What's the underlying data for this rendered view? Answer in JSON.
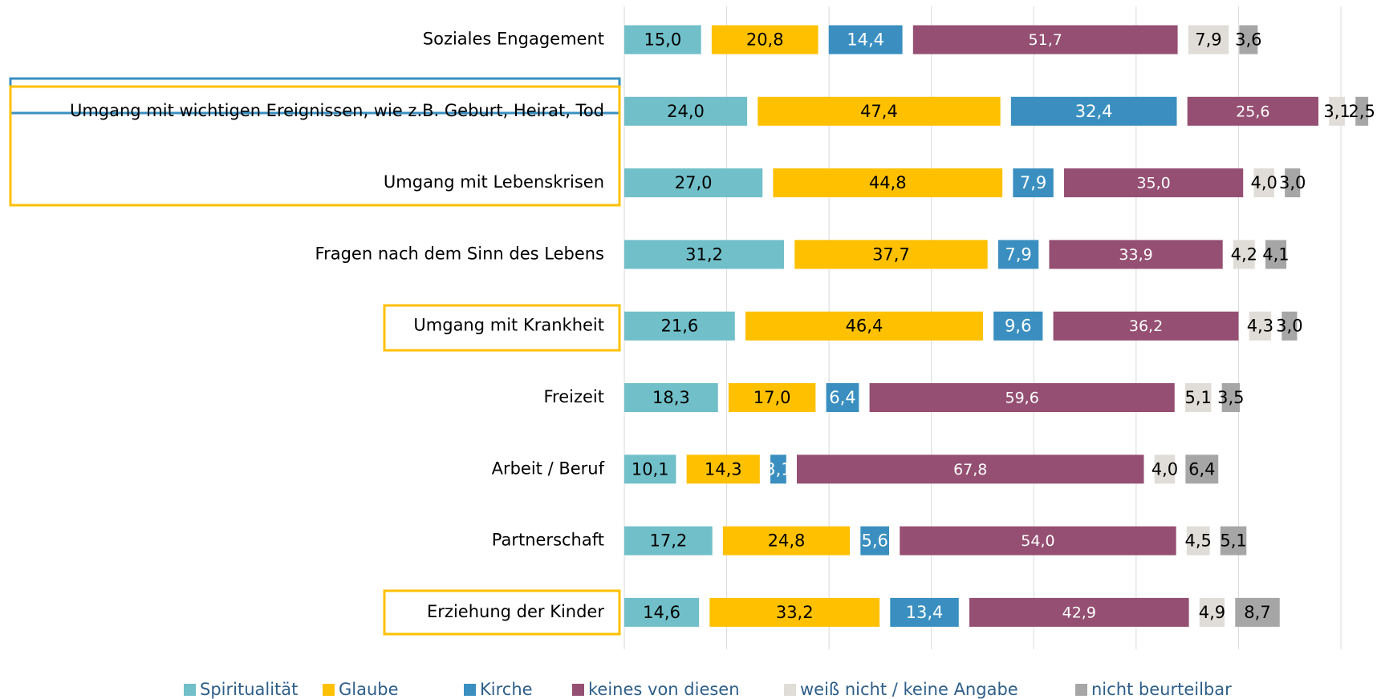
{
  "chart_data": {
    "type": "stacked-barh",
    "categories": [
      "Soziales Engagement",
      "Umgang mit wichtigen Ereignissen, wie z.B. Geburt, Heirat, Tod",
      "Umgang mit Lebenskrisen",
      "Fragen nach dem Sinn des Lebens",
      "Umgang mit Krankheit",
      "Freizeit",
      "Arbeit / Beruf",
      "Partnerschaft",
      "Erziehung der Kinder"
    ],
    "series": [
      {
        "name": "Spiritualität",
        "color": "#70bfc9",
        "label_color": "#000000",
        "values": [
          15.0,
          24.0,
          27.0,
          31.2,
          21.6,
          18.3,
          10.1,
          17.2,
          14.6
        ],
        "value_labels": [
          "15,0",
          "24,0",
          "27,0",
          "31,2",
          "21,6",
          "18,3",
          "10,1",
          "17,2",
          "14,6"
        ]
      },
      {
        "name": "Glaube",
        "color": "#ffc000",
        "label_color": "#000000",
        "values": [
          20.8,
          47.4,
          44.8,
          37.7,
          46.4,
          17.0,
          14.3,
          24.8,
          33.2
        ],
        "value_labels": [
          "20,8",
          "47,4",
          "44,8",
          "37,7",
          "46,4",
          "17,0",
          "14,3",
          "24,8",
          "33,2"
        ]
      },
      {
        "name": "Kirche",
        "color": "#3a8fc0",
        "label_color": "#ffffff",
        "values": [
          14.4,
          32.4,
          7.9,
          7.9,
          9.6,
          6.4,
          3.1,
          5.6,
          13.4
        ],
        "value_labels": [
          "14,4",
          "32,4",
          "7,9",
          "7,9",
          "9,6",
          "6,4",
          "3,1",
          "5,6",
          "13,4"
        ]
      },
      {
        "name": "keines von diesen",
        "color": "#954f72",
        "label_color": "#ffffff",
        "values": [
          51.7,
          25.6,
          35.0,
          33.9,
          36.2,
          59.6,
          67.8,
          54.0,
          42.9
        ],
        "value_labels": [
          "51,7",
          "25,6",
          "35,0",
          "33,9",
          "36,2",
          "59,6",
          "67,8",
          "54,0",
          "42,9"
        ]
      },
      {
        "name": "weiß nicht / keine Angabe",
        "color": "#e0ddd8",
        "label_color": "#000000",
        "values": [
          7.9,
          3.1,
          4.0,
          4.2,
          4.3,
          5.1,
          4.0,
          4.5,
          4.9
        ],
        "value_labels": [
          "7,9",
          "3,1",
          "4,0",
          "4,2",
          "4,3",
          "5,1",
          "4,0",
          "4,5",
          "4,9"
        ]
      },
      {
        "name": "nicht beurteilbar",
        "color": "#a6a6a6",
        "label_color": "#000000",
        "values": [
          3.6,
          2.5,
          3.0,
          4.1,
          3.0,
          3.5,
          6.4,
          5.1,
          8.7
        ],
        "value_labels": [
          "3,6",
          "2,5",
          "3,0",
          "4,1",
          "3,0",
          "3,5",
          "6,4",
          "5,1",
          "8,7"
        ]
      }
    ],
    "xlim": [
      0,
      140
    ],
    "grid": true
  }
}
